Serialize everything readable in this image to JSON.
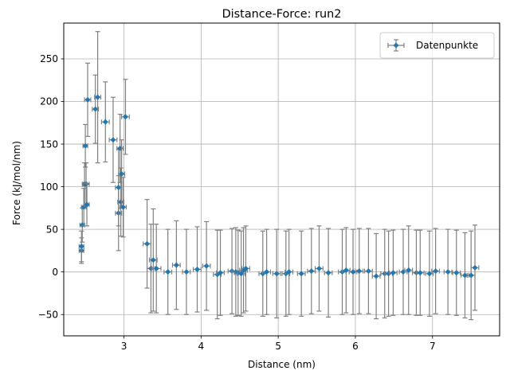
{
  "chart_data": {
    "type": "scatter",
    "title": "Distance-Force: run2",
    "xlabel": "Distance (nm)",
    "ylabel": "Force (kJ/mol/nm)",
    "xlim": [
      2.22,
      7.87
    ],
    "ylim": [
      -75,
      292
    ],
    "xticks": [
      3,
      4,
      5,
      6,
      7
    ],
    "yticks": [
      -50,
      0,
      50,
      100,
      150,
      200,
      250
    ],
    "grid": true,
    "legend": {
      "position": "top-right",
      "entries": [
        "Datenpunkte"
      ]
    },
    "colors": {
      "marker": "#1f77b4",
      "errorbar": "#808080",
      "grid": "#b0b0b0"
    },
    "series": [
      {
        "name": "Datenpunkte",
        "points": [
          {
            "x": 2.45,
            "y": 25,
            "yerr": 15,
            "xerr": 0.03
          },
          {
            "x": 2.45,
            "y": 30,
            "yerr": 18,
            "xerr": 0.03
          },
          {
            "x": 2.46,
            "y": 55,
            "yerr": 20,
            "xerr": 0.03
          },
          {
            "x": 2.48,
            "y": 76,
            "yerr": 22,
            "xerr": 0.03
          },
          {
            "x": 2.49,
            "y": 103,
            "yerr": 25,
            "xerr": 0.03
          },
          {
            "x": 2.5,
            "y": 148,
            "yerr": 25,
            "xerr": 0.03
          },
          {
            "x": 2.51,
            "y": 103,
            "yerr": 25,
            "xerr": 0.04
          },
          {
            "x": 2.52,
            "y": 79,
            "yerr": 25,
            "xerr": 0.03
          },
          {
            "x": 2.53,
            "y": 202,
            "yerr": 43,
            "xerr": 0.04
          },
          {
            "x": 2.63,
            "y": 191,
            "yerr": 40,
            "xerr": 0.04
          },
          {
            "x": 2.66,
            "y": 205,
            "yerr": 77,
            "xerr": 0.04
          },
          {
            "x": 2.76,
            "y": 176,
            "yerr": 47,
            "xerr": 0.05
          },
          {
            "x": 2.86,
            "y": 155,
            "yerr": 50,
            "xerr": 0.05
          },
          {
            "x": 2.93,
            "y": 69,
            "yerr": 44,
            "xerr": 0.04
          },
          {
            "x": 2.93,
            "y": 99,
            "yerr": 45,
            "xerr": 0.04
          },
          {
            "x": 2.95,
            "y": 145,
            "yerr": 40,
            "xerr": 0.04
          },
          {
            "x": 2.96,
            "y": 82,
            "yerr": 40,
            "xerr": 0.04
          },
          {
            "x": 2.97,
            "y": 115,
            "yerr": 40,
            "xerr": 0.04
          },
          {
            "x": 2.99,
            "y": 76,
            "yerr": 35,
            "xerr": 0.04
          },
          {
            "x": 3.02,
            "y": 182,
            "yerr": 44,
            "xerr": 0.05
          },
          {
            "x": 3.3,
            "y": 33,
            "yerr": 52,
            "xerr": 0.05
          },
          {
            "x": 3.35,
            "y": 4,
            "yerr": 52,
            "xerr": 0.05
          },
          {
            "x": 3.38,
            "y": 14,
            "yerr": 60,
            "xerr": 0.05
          },
          {
            "x": 3.42,
            "y": 4,
            "yerr": 52,
            "xerr": 0.06
          },
          {
            "x": 3.57,
            "y": 0,
            "yerr": 50,
            "xerr": 0.05
          },
          {
            "x": 3.68,
            "y": 8,
            "yerr": 52,
            "xerr": 0.05
          },
          {
            "x": 3.81,
            "y": 0,
            "yerr": 50,
            "xerr": 0.05
          },
          {
            "x": 3.95,
            "y": 3,
            "yerr": 50,
            "xerr": 0.05
          },
          {
            "x": 4.07,
            "y": 7,
            "yerr": 52,
            "xerr": 0.05
          },
          {
            "x": 4.21,
            "y": -3,
            "yerr": 52,
            "xerr": 0.05
          },
          {
            "x": 4.25,
            "y": -1,
            "yerr": 50,
            "xerr": 0.05
          },
          {
            "x": 4.4,
            "y": 1,
            "yerr": 50,
            "xerr": 0.05
          },
          {
            "x": 4.45,
            "y": 0,
            "yerr": 52,
            "xerr": 0.05
          },
          {
            "x": 4.48,
            "y": -1,
            "yerr": 50,
            "xerr": 0.05
          },
          {
            "x": 4.52,
            "y": -2,
            "yerr": 50,
            "xerr": 0.05
          },
          {
            "x": 4.55,
            "y": 2,
            "yerr": 50,
            "xerr": 0.05
          },
          {
            "x": 4.58,
            "y": 4,
            "yerr": 50,
            "xerr": 0.05
          },
          {
            "x": 4.8,
            "y": -2,
            "yerr": 50,
            "xerr": 0.05
          },
          {
            "x": 4.85,
            "y": 0,
            "yerr": 50,
            "xerr": 0.05
          },
          {
            "x": 4.98,
            "y": -2,
            "yerr": 52,
            "xerr": 0.05
          },
          {
            "x": 5.1,
            "y": -2,
            "yerr": 50,
            "xerr": 0.05
          },
          {
            "x": 5.14,
            "y": 0,
            "yerr": 50,
            "xerr": 0.05
          },
          {
            "x": 5.3,
            "y": -2,
            "yerr": 50,
            "xerr": 0.05
          },
          {
            "x": 5.43,
            "y": 1,
            "yerr": 50,
            "xerr": 0.05
          },
          {
            "x": 5.53,
            "y": 4,
            "yerr": 50,
            "xerr": 0.05
          },
          {
            "x": 5.65,
            "y": -1,
            "yerr": 52,
            "xerr": 0.05
          },
          {
            "x": 5.83,
            "y": 0,
            "yerr": 50,
            "xerr": 0.05
          },
          {
            "x": 5.88,
            "y": 2,
            "yerr": 50,
            "xerr": 0.05
          },
          {
            "x": 5.97,
            "y": 0,
            "yerr": 50,
            "xerr": 0.05
          },
          {
            "x": 6.05,
            "y": 1,
            "yerr": 50,
            "xerr": 0.05
          },
          {
            "x": 6.17,
            "y": 1,
            "yerr": 50,
            "xerr": 0.05
          },
          {
            "x": 6.27,
            "y": -5,
            "yerr": 50,
            "xerr": 0.05
          },
          {
            "x": 6.38,
            "y": -2,
            "yerr": 52,
            "xerr": 0.05
          },
          {
            "x": 6.43,
            "y": -2,
            "yerr": 50,
            "xerr": 0.05
          },
          {
            "x": 6.49,
            "y": -1,
            "yerr": 50,
            "xerr": 0.05
          },
          {
            "x": 6.62,
            "y": 0,
            "yerr": 50,
            "xerr": 0.05
          },
          {
            "x": 6.69,
            "y": 2,
            "yerr": 52,
            "xerr": 0.05
          },
          {
            "x": 6.79,
            "y": -1,
            "yerr": 50,
            "xerr": 0.05
          },
          {
            "x": 6.84,
            "y": -1,
            "yerr": 50,
            "xerr": 0.05
          },
          {
            "x": 6.96,
            "y": -2,
            "yerr": 50,
            "xerr": 0.05
          },
          {
            "x": 7.04,
            "y": 1,
            "yerr": 50,
            "xerr": 0.05
          },
          {
            "x": 7.2,
            "y": 0,
            "yerr": 50,
            "xerr": 0.05
          },
          {
            "x": 7.31,
            "y": -1,
            "yerr": 50,
            "xerr": 0.05
          },
          {
            "x": 7.42,
            "y": -4,
            "yerr": 50,
            "xerr": 0.05
          },
          {
            "x": 7.5,
            "y": -4,
            "yerr": 52,
            "xerr": 0.05
          },
          {
            "x": 7.55,
            "y": 5,
            "yerr": 50,
            "xerr": 0.05
          }
        ]
      }
    ]
  }
}
